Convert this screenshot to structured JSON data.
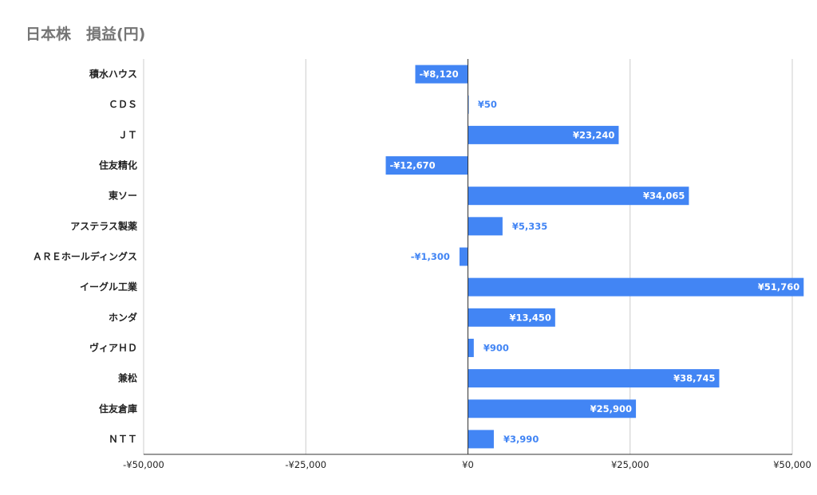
{
  "chart_data": {
    "type": "bar",
    "orientation": "horizontal",
    "title": "日本株　損益(円)",
    "categories": [
      "積水ハウス",
      "ＣＤＳ",
      "ＪＴ",
      "住友精化",
      "東ソー",
      "アステラス製薬",
      "ＡＲＥホールディングス",
      "イーグル工業",
      "ホンダ",
      "ヴィアＨＤ",
      "兼松",
      "住友倉庫",
      "ＮＴＴ"
    ],
    "values": [
      -8120,
      50,
      23240,
      -12670,
      34065,
      5335,
      -1300,
      51760,
      13450,
      900,
      38745,
      25900,
      3990
    ],
    "value_labels": [
      "-¥8,120",
      "¥50",
      "¥23,240",
      "-¥12,670",
      "¥34,065",
      "¥5,335",
      "-¥1,300",
      "¥51,760",
      "¥13,450",
      "¥900",
      "¥38,745",
      "¥25,900",
      "¥3,990"
    ],
    "xlim": [
      -50000,
      50000
    ],
    "xticks": [
      -50000,
      -25000,
      0,
      25000,
      50000
    ],
    "xtick_labels": [
      "-¥50,000",
      "-¥25,000",
      "¥0",
      "¥25,000",
      "¥50,000"
    ],
    "grid": true,
    "bar_color": "#4285f4",
    "grid_color": "#cccccc"
  }
}
